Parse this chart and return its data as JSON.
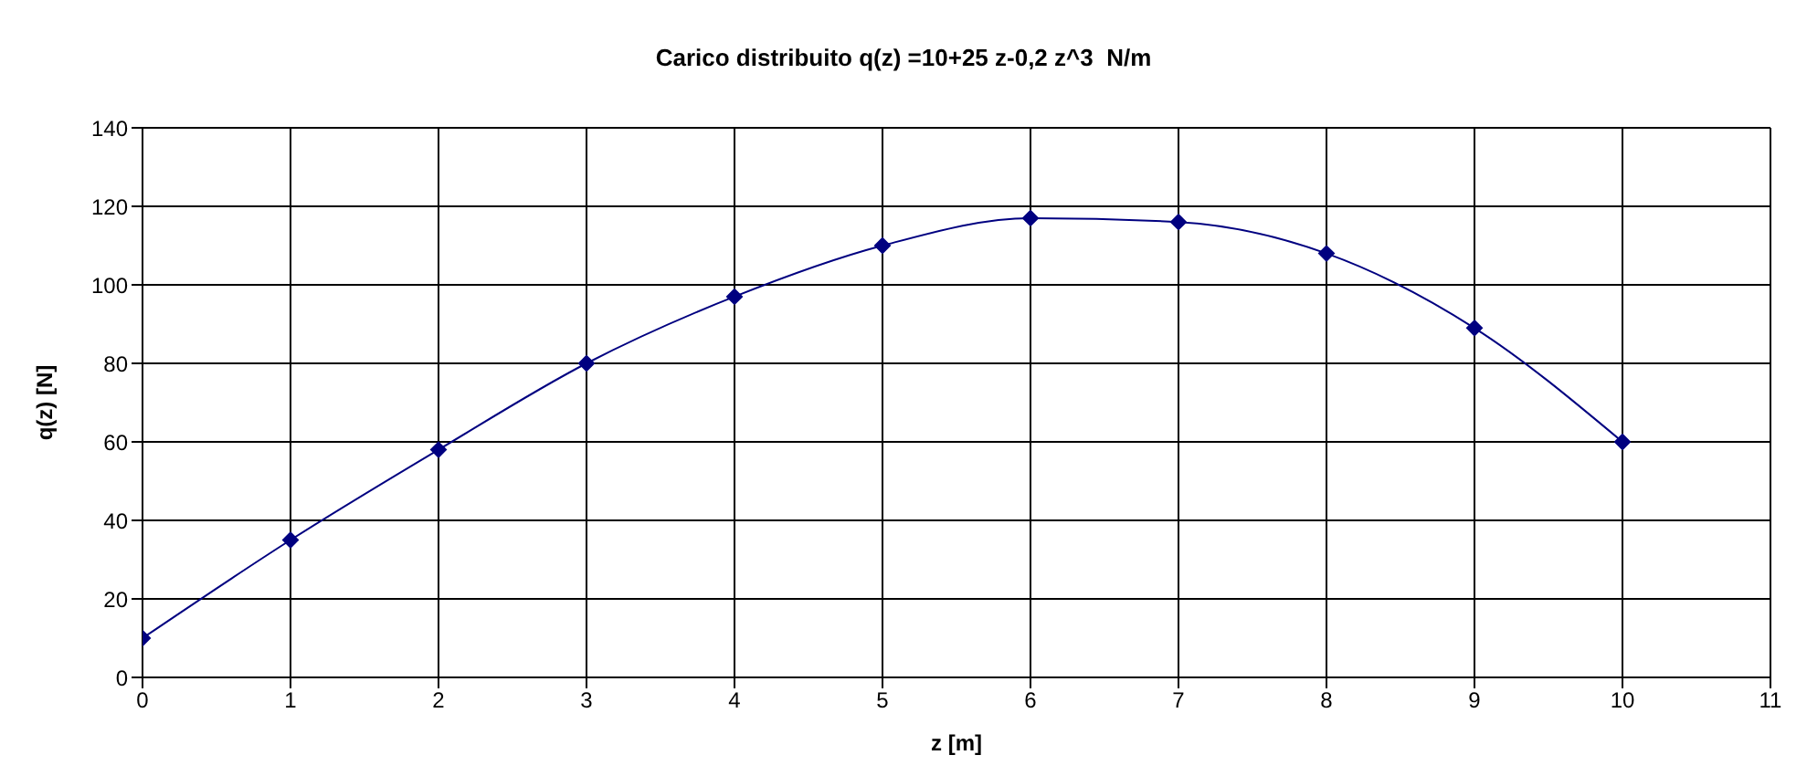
{
  "chart_data": {
    "type": "line",
    "title": "Carico distribuito q(z) =10+25 z-0,2 z^3  N/m",
    "xlabel": "z [m]",
    "ylabel": "q(z) [N]",
    "x": [
      0,
      1,
      2,
      3,
      4,
      5,
      6,
      7,
      8,
      9,
      10
    ],
    "series": [
      {
        "color": "#000080",
        "values": [
          10,
          35,
          58,
          80,
          97,
          110,
          117,
          116,
          108,
          89,
          60
        ]
      }
    ],
    "xlim": [
      0,
      11
    ],
    "xticks": [
      0,
      1,
      2,
      3,
      4,
      5,
      6,
      7,
      8,
      9,
      10,
      11
    ],
    "ylim": [
      0,
      140
    ],
    "yticks": [
      0,
      20,
      40,
      60,
      80,
      100,
      120,
      140
    ],
    "grid": true,
    "legend": false,
    "marker": "diamond",
    "line_style": "solid"
  }
}
